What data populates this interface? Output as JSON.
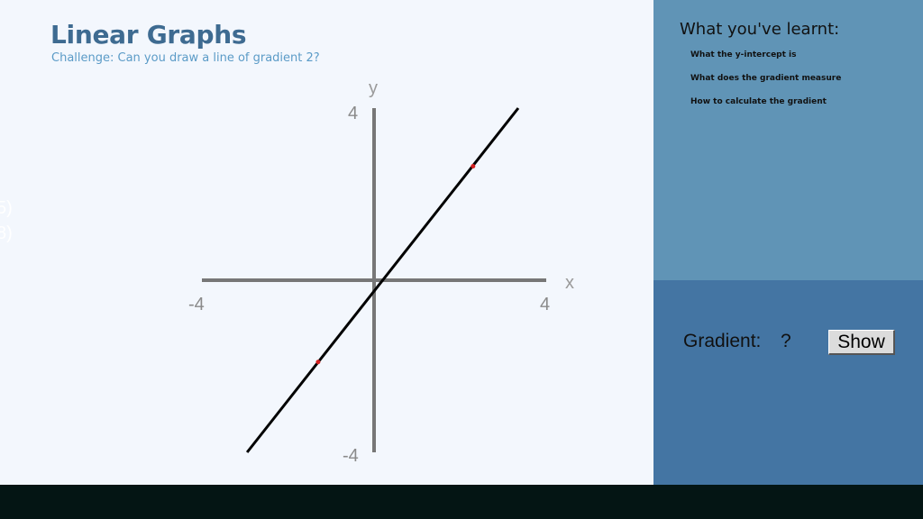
{
  "header": {
    "title": "Linear Graphs",
    "subtitle": "Challenge: Can you draw a line of gradient 2?"
  },
  "offscreen_fragments": [
    "5)",
    "8)"
  ],
  "graph": {
    "x_axis_label": "x",
    "y_axis_label": "y",
    "x_min_label": "-4",
    "x_max_label": "4",
    "y_max_label": "4",
    "y_min_label": "-4",
    "x_range": [
      -4,
      4
    ],
    "y_range": [
      -4,
      4
    ],
    "line_color": "#000000",
    "axis_color": "#777777",
    "point_color": "#d42020"
  },
  "chart_data": {
    "type": "line",
    "xlim": [
      -4,
      4
    ],
    "ylim": [
      -4,
      4
    ],
    "xlabel": "x",
    "ylabel": "y",
    "series": [
      {
        "x": [
          -2.95,
          3.35
        ],
        "y": [
          -4.0,
          4.0
        ]
      }
    ],
    "points": [
      {
        "x": -1.3,
        "y": -1.9
      },
      {
        "x": 2.3,
        "y": 2.65
      }
    ]
  },
  "learnt_panel": {
    "title": "What you've learnt:",
    "items": [
      "What the y-intercept is",
      "What does the gradient measure",
      "How to calculate the gradient"
    ]
  },
  "gradient_panel": {
    "label": "Gradient:",
    "value": "?",
    "button_label": "Show"
  },
  "colors": {
    "title": "#3e6b91",
    "subtitle": "#5b9bc7",
    "side_top": "#6094b6",
    "side_bottom": "#4475a3",
    "taskbar": "#041514"
  }
}
